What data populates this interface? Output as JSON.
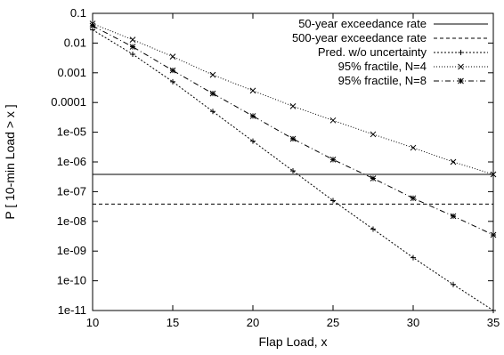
{
  "chart_data": {
    "type": "line",
    "title": "",
    "xlabel": "Flap Load, x",
    "ylabel": "P [ 10-min Load > x ]",
    "xlim": [
      10,
      35
    ],
    "ylim": [
      1e-11,
      0.1
    ],
    "yscale": "log",
    "grid": false,
    "legend_position": "top-right",
    "x_ticks": [
      10,
      15,
      20,
      25,
      30,
      35
    ],
    "x_tick_labels": [
      "10",
      "15",
      "20",
      "25",
      "30",
      "35"
    ],
    "y_ticks": [
      0.1,
      0.01,
      0.001,
      0.0001,
      1e-05,
      1e-06,
      1e-07,
      1e-08,
      1e-09,
      1e-10,
      1e-11
    ],
    "y_tick_labels": [
      "0.1",
      "0.01",
      "0.001",
      "0.0001",
      "1e-05",
      "1e-06",
      "1e-07",
      "1e-08",
      "1e-09",
      "1e-10",
      "1e-11"
    ],
    "series": [
      {
        "name": "50-year exceedance rate",
        "style": "solid",
        "marker": "none",
        "x": [
          10,
          35
        ],
        "values": [
          3.8e-07,
          3.8e-07
        ]
      },
      {
        "name": "500-year exceedance rate",
        "style": "dashed",
        "marker": "none",
        "x": [
          10,
          35
        ],
        "values": [
          3.8e-08,
          3.8e-08
        ]
      },
      {
        "name": "Pred. w/o uncertainty",
        "style": "dotted",
        "marker": "plus",
        "x": [
          10,
          12.5,
          15,
          17.5,
          20,
          22.5,
          25,
          27.5,
          30,
          32.5,
          35
        ],
        "values": [
          0.028,
          0.0042,
          0.0005,
          5e-05,
          5e-06,
          5e-07,
          5e-08,
          5.5e-09,
          6e-10,
          7.5e-11,
          1e-11
        ]
      },
      {
        "name": "95% fractile, N=4",
        "style": "fine-dotted",
        "marker": "x",
        "x": [
          10,
          12.5,
          15,
          17.5,
          20,
          22.5,
          25,
          27.5,
          30,
          32.5,
          35
        ],
        "values": [
          0.045,
          0.013,
          0.0035,
          0.00085,
          0.00025,
          7.5e-05,
          2.5e-05,
          8.5e-06,
          3e-06,
          1e-06,
          3.8e-07
        ]
      },
      {
        "name": "95% fractile, N=8",
        "style": "dash-dot",
        "marker": "star",
        "x": [
          10,
          12.5,
          15,
          17.5,
          20,
          22.5,
          25,
          27.5,
          30,
          32.5,
          35
        ],
        "values": [
          0.038,
          0.0075,
          0.0012,
          0.0002,
          3.5e-05,
          6e-06,
          1.2e-06,
          2.8e-07,
          6e-08,
          1.5e-08,
          3.5e-09
        ]
      }
    ]
  }
}
